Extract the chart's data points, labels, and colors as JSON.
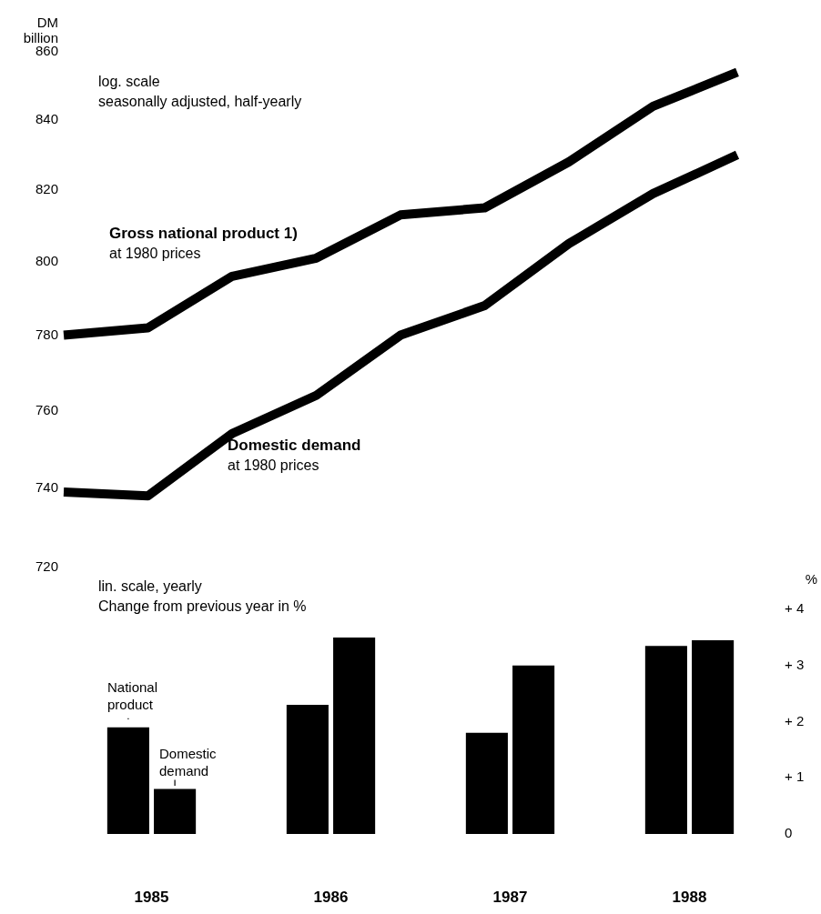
{
  "chart_data": [
    {
      "type": "line",
      "ylabel": "DM billion",
      "log": true,
      "ylim": [
        720,
        860
      ],
      "yticks": [
        720,
        740,
        760,
        780,
        800,
        820,
        840,
        860
      ],
      "tick_labels": "y",
      "grid": false,
      "legend": false,
      "categories": [
        null,
        null,
        null,
        null,
        null,
        null,
        null,
        null,
        null
      ],
      "annotations": [
        "log. scale",
        "seasonally adjusted, half-yearly",
        "at 1980 prices",
        "at 1980 prices"
      ],
      "series": [
        {
          "name": "Gross national product 1)",
          "color": "#000000",
          "values": [
            780,
            782,
            796,
            801,
            813,
            815,
            828,
            844,
            854
          ]
        },
        {
          "name": "Domestic demand",
          "color": "#000000",
          "values": [
            739,
            738,
            754,
            764,
            780,
            788,
            805,
            819,
            830
          ]
        }
      ]
    },
    {
      "type": "bar",
      "y2label": "%",
      "y2lim": [
        0,
        4
      ],
      "y2ticks": [
        0,
        {
          "value": 1,
          "label": "+ 1"
        },
        {
          "value": 2,
          "label": "+ 2"
        },
        {
          "value": 3,
          "label": "+ 3"
        },
        {
          "value": 4,
          "label": "+ 4"
        }
      ],
      "grid": false,
      "legend": false,
      "categories": [
        "1985",
        "1986",
        "1987",
        "1988"
      ],
      "annotations": [
        "lin. scale, yearly",
        "Change from previous year in %"
      ],
      "series": [
        {
          "name": "National product",
          "color": "#000000",
          "axis": "y2",
          "values": [
            1.9,
            2.3,
            1.8,
            3.35
          ]
        },
        {
          "name": "Domestic demand",
          "color": "#000000",
          "axis": "y2",
          "values": [
            0.8,
            3.5,
            3.0,
            3.45
          ]
        }
      ]
    }
  ]
}
